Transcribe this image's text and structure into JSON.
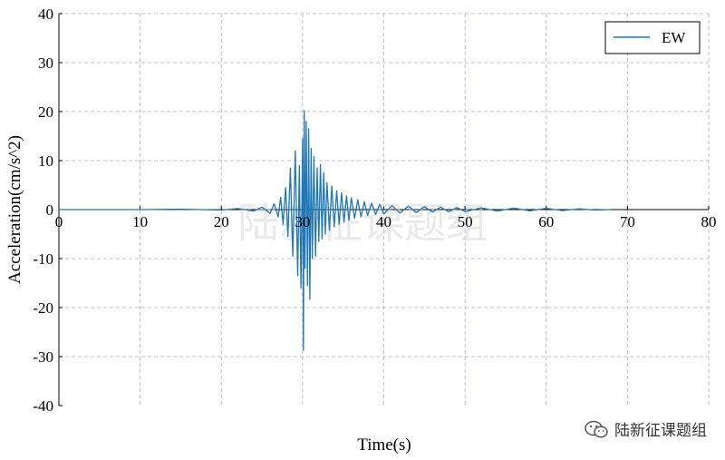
{
  "chart_data": {
    "type": "line",
    "title": "",
    "xlabel": "Time(s)",
    "ylabel": "Acceleration(cm/s^2)",
    "xlim": [
      0,
      80
    ],
    "ylim": [
      -40,
      40
    ],
    "xticks": [
      0,
      10,
      20,
      30,
      40,
      50,
      60,
      70,
      80
    ],
    "yticks": [
      -40,
      -30,
      -20,
      -10,
      0,
      10,
      20,
      30,
      40
    ],
    "xtick_labels": [
      "0",
      "10",
      "20",
      "30",
      "40",
      "50",
      "60",
      "70",
      "80"
    ],
    "ytick_labels": [
      "-40",
      "-30",
      "-20",
      "-10",
      "0",
      "10",
      "20",
      "30",
      "40"
    ],
    "grid": true,
    "legend_position": "top-right",
    "colors": {
      "series": "#1f77b4",
      "grid": "#b9a8c4"
    },
    "series": [
      {
        "name": "EW",
        "x": [
          0,
          5,
          10,
          15,
          20,
          22,
          24,
          25,
          26,
          26.5,
          27,
          27.3,
          27.6,
          27.9,
          28.2,
          28.5,
          28.8,
          29.1,
          29.4,
          29.6,
          29.8,
          30.0,
          30.1,
          30.2,
          30.3,
          30.45,
          30.6,
          30.75,
          30.9,
          31.05,
          31.2,
          31.4,
          31.6,
          31.8,
          32.0,
          32.2,
          32.4,
          32.6,
          32.8,
          33.0,
          33.3,
          33.6,
          33.9,
          34.2,
          34.5,
          34.8,
          35.1,
          35.4,
          35.7,
          36.0,
          36.4,
          36.8,
          37.2,
          37.6,
          38.0,
          38.5,
          39.0,
          39.5,
          40.0,
          41.0,
          42.0,
          43.0,
          44.0,
          45.0,
          46.0,
          47.0,
          48.0,
          49.0,
          50.0,
          52.0,
          54.0,
          56.0,
          58.0,
          60.0,
          62.0,
          64.0,
          66.0,
          68.0
        ],
        "y": [
          0,
          0,
          0,
          0.1,
          -0.1,
          0.2,
          -0.3,
          0.5,
          -0.8,
          1.2,
          -1.5,
          2.5,
          -3.0,
          4.5,
          -5.5,
          8.5,
          -9.5,
          12.0,
          -13.5,
          9.0,
          -16.0,
          14.5,
          -28.7,
          20.2,
          -12.0,
          18.0,
          -15.5,
          16.5,
          -18.3,
          12.5,
          -10.0,
          10.8,
          -9.5,
          8.5,
          -6.5,
          9.2,
          -6.0,
          7.5,
          -5.0,
          5.5,
          -4.2,
          4.8,
          -3.5,
          3.8,
          -3.0,
          3.4,
          -2.6,
          2.8,
          -2.2,
          2.4,
          -1.8,
          2.0,
          -1.5,
          1.6,
          -1.2,
          1.3,
          -1.0,
          1.1,
          -0.9,
          0.8,
          -0.7,
          0.7,
          -0.6,
          0.6,
          -0.5,
          0.5,
          -0.45,
          0.4,
          -0.4,
          0.35,
          -0.3,
          0.3,
          -0.25,
          0.25,
          -0.2,
          0.15,
          -0.1,
          0
        ]
      }
    ],
    "watermark": "陆新征课题组"
  },
  "branding": {
    "wechat_account": "陆新征课题组",
    "wechat_icon": "wechat-icon"
  }
}
